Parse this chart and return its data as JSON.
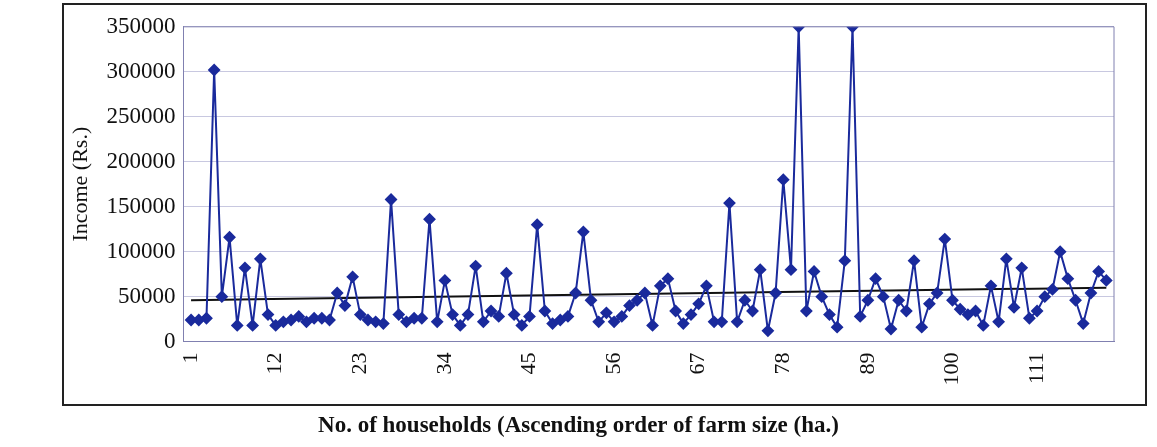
{
  "chart_data": {
    "type": "line",
    "xlabel": "No. of  households (Ascending order of farm size (ha.)",
    "ylabel": "Income (Rs.)",
    "x": [
      1,
      2,
      3,
      4,
      5,
      6,
      7,
      8,
      9,
      10,
      11,
      12,
      13,
      14,
      15,
      16,
      17,
      18,
      19,
      20,
      21,
      22,
      23,
      24,
      25,
      26,
      27,
      28,
      29,
      30,
      31,
      32,
      33,
      34,
      35,
      36,
      37,
      38,
      39,
      40,
      41,
      42,
      43,
      44,
      45,
      46,
      47,
      48,
      49,
      50,
      51,
      52,
      53,
      54,
      55,
      56,
      57,
      58,
      59,
      60,
      61,
      62,
      63,
      64,
      65,
      66,
      67,
      68,
      69,
      70,
      71,
      72,
      73,
      74,
      75,
      76,
      77,
      78,
      79,
      80,
      81,
      82,
      83,
      84,
      85,
      86,
      87,
      88,
      89,
      90,
      91,
      92,
      93,
      94,
      95,
      96,
      97,
      98,
      99,
      100,
      101,
      102,
      103,
      104,
      105,
      106,
      107,
      108,
      109,
      110,
      111,
      112,
      113,
      114,
      115,
      116,
      117,
      118,
      119,
      120
    ],
    "series": [
      {
        "color": "#1a2a9c",
        "marker": "diamond",
        "values": [
          24000,
          24000,
          26000,
          302000,
          50000,
          116000,
          18000,
          82000,
          18000,
          92000,
          30000,
          18000,
          22000,
          24000,
          28000,
          22000,
          26000,
          26000,
          24000,
          54000,
          40000,
          72000,
          30000,
          24000,
          22000,
          20000,
          158000,
          30000,
          22000,
          26000,
          26000,
          136000,
          22000,
          68000,
          30000,
          18000,
          30000,
          84000,
          22000,
          34000,
          28000,
          76000,
          30000,
          18000,
          28000,
          130000,
          34000,
          20000,
          24000,
          28000,
          54000,
          122000,
          46000,
          22000,
          32000,
          22000,
          28000,
          40000,
          46000,
          54000,
          18000,
          62000,
          70000,
          34000,
          20000,
          30000,
          42000,
          62000,
          22000,
          22000,
          154000,
          22000,
          46000,
          34000,
          80000,
          12000,
          54000,
          180000,
          80000,
          350000,
          34000,
          78000,
          50000,
          30000,
          16000,
          90000,
          350000,
          28000,
          46000,
          70000,
          50000,
          14000,
          46000,
          34000,
          90000,
          16000,
          42000,
          54000,
          114000,
          46000,
          36000,
          30000,
          34000,
          18000,
          62000,
          22000,
          92000,
          38000,
          82000,
          26000,
          34000,
          50000,
          58000,
          100000,
          70000,
          46000,
          20000,
          54000,
          78000,
          68000
        ]
      },
      {
        "type": "line",
        "color": "#111111",
        "marker": "none",
        "x": [
          1,
          120
        ],
        "values": [
          46000,
          60000
        ]
      }
    ],
    "xlim": [
      0,
      121
    ],
    "xticks": [
      1,
      12,
      23,
      34,
      45,
      56,
      67,
      78,
      89,
      100,
      111
    ],
    "ylim": [
      0,
      350000
    ],
    "yticks": [
      0,
      50000,
      100000,
      150000,
      200000,
      250000,
      300000,
      350000
    ],
    "grid": "y",
    "legend": false
  }
}
